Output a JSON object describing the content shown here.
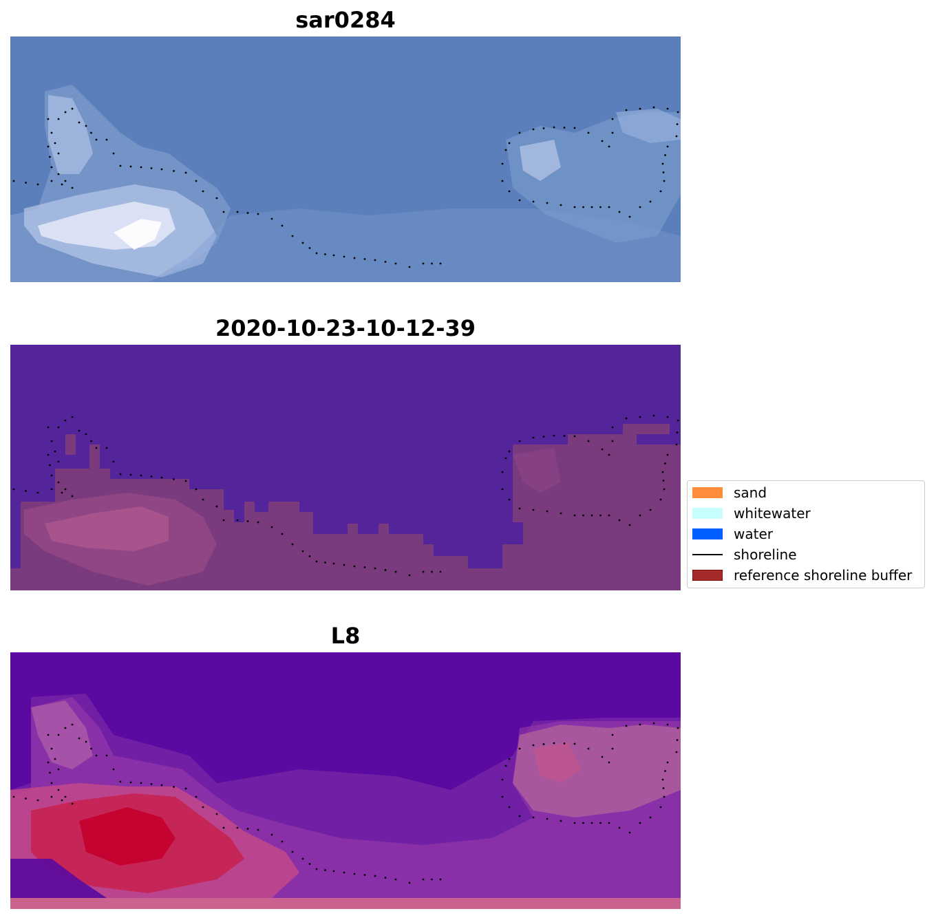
{
  "panels": [
    {
      "title": "sar0284",
      "layer": "satellite-image"
    },
    {
      "title": "2020-10-23-10-12-39",
      "layer": "classification"
    },
    {
      "title": "L8",
      "layer": "index-map"
    }
  ],
  "legend": {
    "items": [
      {
        "label": "sand",
        "type": "patch",
        "color": "#ff8c3b"
      },
      {
        "label": "whitewater",
        "type": "patch",
        "color": "#c8fdfd"
      },
      {
        "label": "water",
        "type": "patch",
        "color": "#0060ff"
      },
      {
        "label": "shoreline",
        "type": "line",
        "color": "#000000"
      },
      {
        "label": "reference shoreline buffer",
        "type": "patch",
        "color": "#a52a2a"
      }
    ]
  },
  "colors": {
    "sar_background": "#5a7fba",
    "classification_background": "#53249a",
    "classification_land": "#7a3a7e",
    "index_background": "#5a0aa0",
    "index_high": "#c4002e",
    "buffer_strip": "#c9628f"
  }
}
